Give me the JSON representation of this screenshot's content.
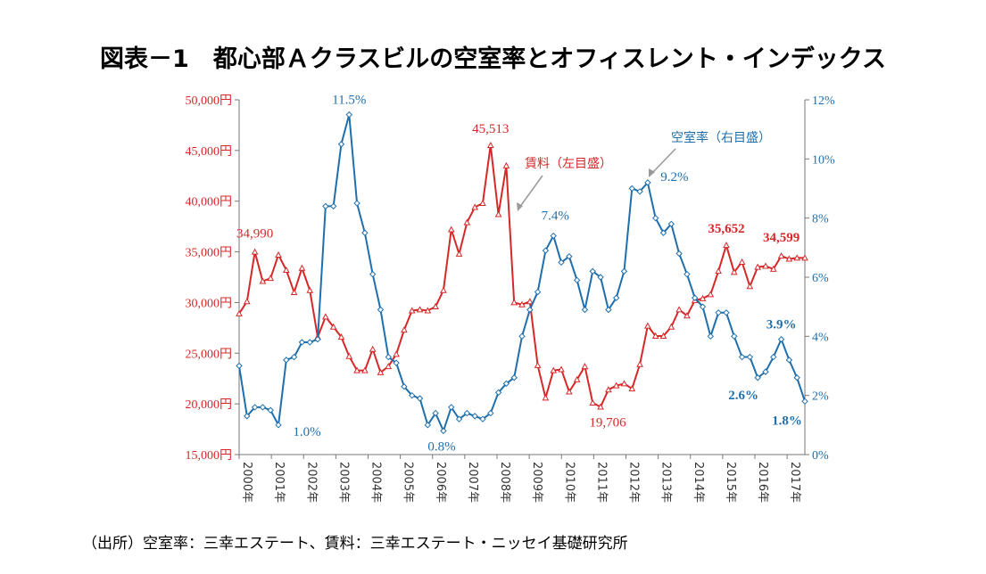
{
  "title": "図表－1　都心部Ａクラスビルの空室率とオフィスレント・インデックス",
  "source": "（出所）空室率：三幸エステート、賃料：三幸エステート・ニッセイ基礎研究所",
  "chart_data": {
    "type": "line",
    "x_ticks": [
      "2000年",
      "2001年",
      "2002年",
      "2003年",
      "2004年",
      "2005年",
      "2006年",
      "2007年",
      "2008年",
      "2009年",
      "2010年",
      "2011年",
      "2012年",
      "2013年",
      "2014年",
      "2015年",
      "2016年",
      "2017年"
    ],
    "y_left": {
      "ticks": [
        "50,000円",
        "45,000円",
        "40,000円",
        "35,000円",
        "30,000円",
        "25,000円",
        "20,000円",
        "15,000円"
      ],
      "ylim": [
        15000,
        50000
      ]
    },
    "y_right": {
      "ticks": [
        "12%",
        "10%",
        "8%",
        "6%",
        "4%",
        "2%",
        "0%"
      ],
      "ylim": [
        0,
        12
      ]
    },
    "colors": {
      "rent": "#d62828",
      "vacancy": "#1f6fad"
    },
    "series": [
      {
        "name": "賃料（左目盛）",
        "axis": "left",
        "x": [
          2000.0,
          2000.25,
          2000.5,
          2000.75,
          2001.0,
          2001.25,
          2001.5,
          2001.75,
          2002.0,
          2002.25,
          2002.5,
          2002.75,
          2003.0,
          2003.25,
          2003.5,
          2003.75,
          2004.0,
          2004.25,
          2004.5,
          2004.75,
          2005.0,
          2005.25,
          2005.5,
          2005.75,
          2006.0,
          2006.25,
          2006.5,
          2006.75,
          2007.0,
          2007.25,
          2007.5,
          2007.75,
          2008.0,
          2008.25,
          2008.5,
          2008.75,
          2009.0,
          2009.25,
          2009.5,
          2009.75,
          2010.0,
          2010.25,
          2010.5,
          2010.75,
          2011.0,
          2011.25,
          2011.5,
          2011.75,
          2012.0,
          2012.25,
          2012.5,
          2012.75,
          2013.0,
          2013.25,
          2013.5,
          2013.75,
          2014.0,
          2014.25,
          2014.5,
          2014.75,
          2015.0,
          2015.25,
          2015.5,
          2015.75,
          2016.0,
          2016.25,
          2016.5,
          2016.75,
          2017.0,
          2017.25,
          2017.5,
          2017.75,
          2018.0
        ],
        "values": [
          28900,
          30100,
          34990,
          32100,
          32400,
          34700,
          33200,
          31000,
          33400,
          31200,
          26600,
          28600,
          27600,
          26600,
          24700,
          23300,
          23300,
          25400,
          23100,
          23700,
          24900,
          27300,
          29200,
          29300,
          29200,
          29600,
          31200,
          37200,
          34800,
          37900,
          39400,
          39800,
          45513,
          38700,
          43500,
          30000,
          29800,
          30100,
          23800,
          20600,
          23300,
          23400,
          21200,
          22400,
          23700,
          20100,
          19706,
          21400,
          21800,
          22000,
          21500,
          23900,
          27700,
          26700,
          26700,
          27600,
          29300,
          28700,
          30200,
          30400,
          30800,
          33100,
          35652,
          33000,
          34000,
          31600,
          33500,
          33600,
          33300,
          34599,
          34300,
          34400,
          34400
        ]
      },
      {
        "name": "空室率（右目盛）",
        "axis": "right",
        "x": [
          2000.0,
          2000.25,
          2000.5,
          2000.75,
          2001.0,
          2001.25,
          2001.5,
          2001.75,
          2002.0,
          2002.25,
          2002.5,
          2002.75,
          2003.0,
          2003.25,
          2003.5,
          2003.75,
          2004.0,
          2004.25,
          2004.5,
          2004.75,
          2005.0,
          2005.25,
          2005.5,
          2005.75,
          2006.0,
          2006.25,
          2006.5,
          2006.75,
          2007.0,
          2007.25,
          2007.5,
          2007.75,
          2008.0,
          2008.25,
          2008.5,
          2008.75,
          2009.0,
          2009.25,
          2009.5,
          2009.75,
          2010.0,
          2010.25,
          2010.5,
          2010.75,
          2011.0,
          2011.25,
          2011.5,
          2011.75,
          2012.0,
          2012.25,
          2012.5,
          2012.75,
          2013.0,
          2013.25,
          2013.5,
          2013.75,
          2014.0,
          2014.25,
          2014.5,
          2014.75,
          2015.0,
          2015.25,
          2015.5,
          2015.75,
          2016.0,
          2016.25,
          2016.5,
          2016.75,
          2017.0,
          2017.25,
          2017.5,
          2017.75,
          2018.0
        ],
        "values": [
          3.0,
          1.3,
          1.6,
          1.6,
          1.5,
          1.0,
          3.2,
          3.3,
          3.8,
          3.8,
          3.9,
          8.4,
          8.4,
          10.5,
          11.5,
          8.5,
          7.5,
          6.1,
          4.9,
          3.3,
          3.1,
          2.3,
          2.0,
          1.9,
          1.0,
          1.4,
          0.8,
          1.6,
          1.2,
          1.4,
          1.3,
          1.2,
          1.4,
          2.1,
          2.4,
          2.6,
          4.0,
          4.9,
          5.5,
          6.9,
          7.4,
          6.5,
          6.7,
          5.9,
          4.9,
          6.2,
          6.0,
          4.9,
          5.3,
          6.2,
          9.0,
          8.9,
          9.2,
          8.0,
          7.5,
          7.8,
          6.8,
          6.1,
          5.3,
          5.0,
          4.0,
          4.8,
          4.8,
          4.0,
          3.3,
          3.3,
          2.6,
          2.8,
          3.3,
          3.9,
          3.2,
          2.6,
          1.8
        ]
      }
    ],
    "annotations": {
      "rent_labels": [
        {
          "x": 2000.5,
          "value": 34990,
          "text": "34,990",
          "bold": false
        },
        {
          "x": 2008.0,
          "value": 45513,
          "text": "45,513",
          "bold": false
        },
        {
          "x": 2011.5,
          "value": 19706,
          "text": "19,706",
          "bold": false
        },
        {
          "x": 2015.5,
          "value": 35652,
          "text": "35,652",
          "bold": true
        },
        {
          "x": 2017.25,
          "value": 34599,
          "text": "34,599",
          "bold": true
        }
      ],
      "vac_labels": [
        {
          "x": 2003.5,
          "value": 11.5,
          "text": "11.5%",
          "bold": false
        },
        {
          "x": 2001.25,
          "value": 1.0,
          "text": "1.0%",
          "bold": false
        },
        {
          "x": 2006.5,
          "value": 0.8,
          "text": "0.8%",
          "bold": false
        },
        {
          "x": 2010.0,
          "value": 7.4,
          "text": "7.4%",
          "bold": false
        },
        {
          "x": 2013.0,
          "value": 9.2,
          "text": "9.2%",
          "bold": false
        },
        {
          "x": 2016.5,
          "value": 2.6,
          "text": "2.6%",
          "bold": true
        },
        {
          "x": 2017.25,
          "value": 3.9,
          "text": "3.9%",
          "bold": true
        },
        {
          "x": 2018.0,
          "value": 1.8,
          "text": "1.8%",
          "bold": true
        }
      ]
    }
  }
}
